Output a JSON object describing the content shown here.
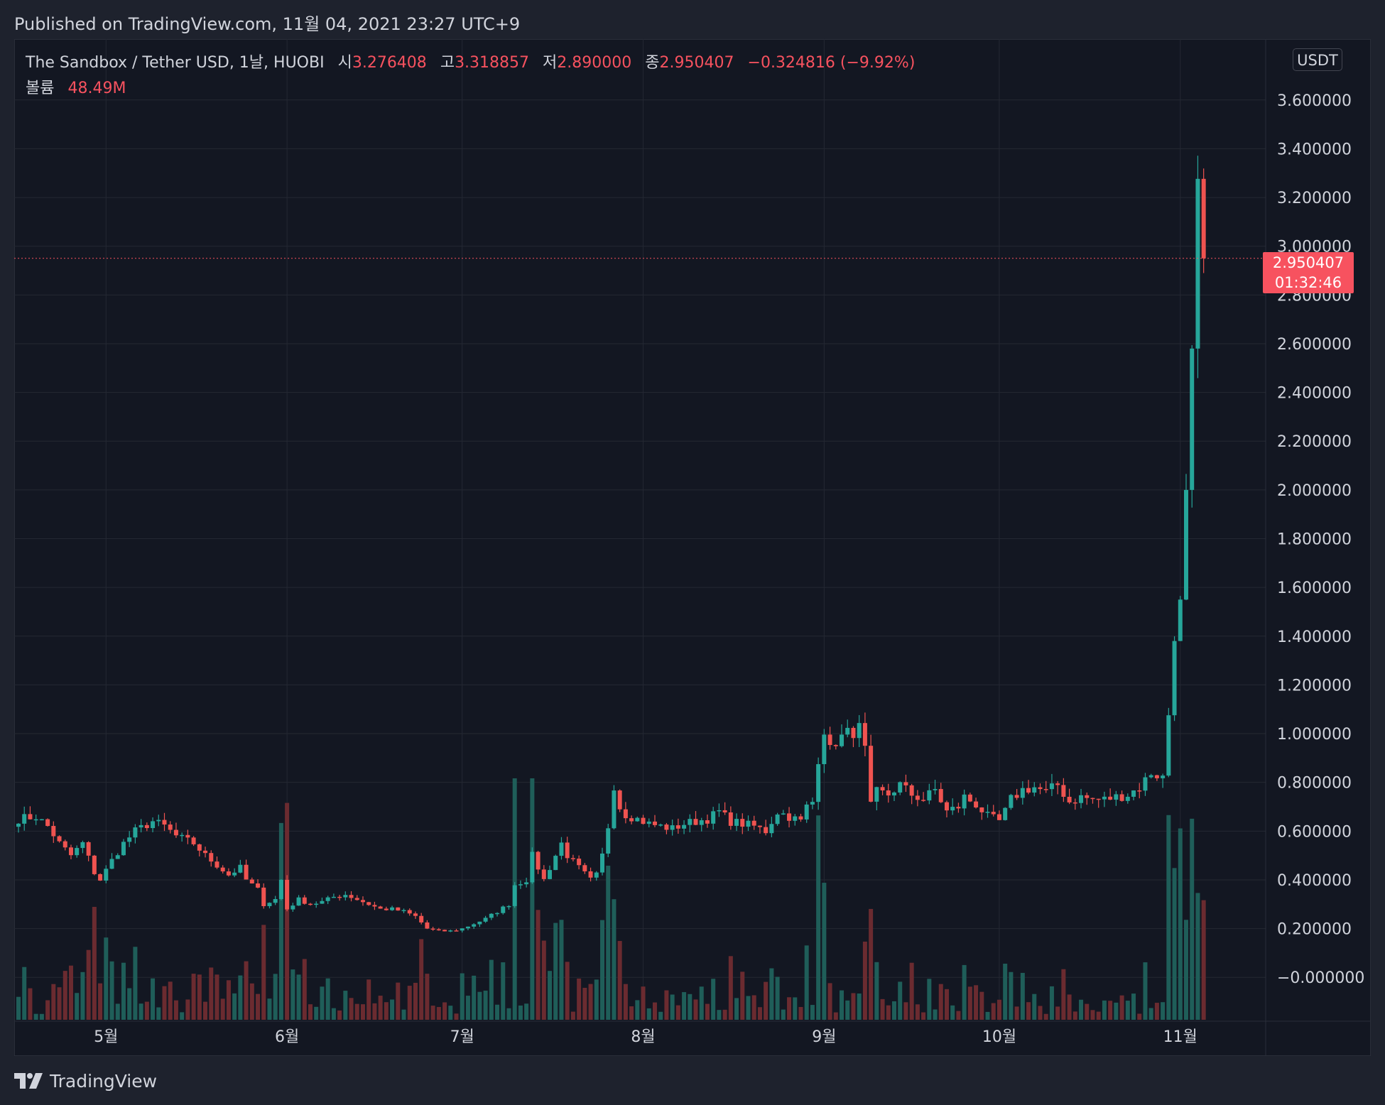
{
  "header": {
    "published": "Published on TradingView.com, 11월 04, 2021 23:27 UTC+9"
  },
  "legend": {
    "title": "The Sandbox / Tether USD, 1날, HUOBI",
    "open_label": "시",
    "open": "3.276408",
    "high_label": "고",
    "high": "3.318857",
    "low_label": "저",
    "low": "2.890000",
    "close_label": "종",
    "close": "2.950407",
    "change": "−0.324816 (−9.92%)",
    "volume_label": "볼륨",
    "volume": "48.49M"
  },
  "scale_currency": "USDT",
  "last_price": {
    "price": "2.950407",
    "countdown": "01:32:46"
  },
  "brand": {
    "name": "TradingView"
  },
  "colors": {
    "background": "#131722",
    "up": "#26a69a",
    "down": "#ef5350",
    "volume_up": "#1f5e59",
    "volume_down": "#6b2b30",
    "grid": "#242833"
  },
  "chart_data": {
    "type": "candlestick",
    "symbol": "SAND/USDT",
    "timeframe": "1D",
    "y_tick_labels": [
      "−0.000000",
      "0.200000",
      "0.400000",
      "0.600000",
      "0.800000",
      "1.000000",
      "1.200000",
      "1.400000",
      "1.600000",
      "1.800000",
      "2.000000",
      "2.200000",
      "2.400000",
      "2.600000",
      "2.800000",
      "3.000000",
      "3.200000",
      "3.400000",
      "3.600000"
    ],
    "y_tick_values": [
      0,
      0.2,
      0.4,
      0.6,
      0.8,
      1.0,
      1.2,
      1.4,
      1.6,
      1.8,
      2.0,
      2.2,
      2.4,
      2.6,
      2.8,
      3.0,
      3.2,
      3.4,
      3.6
    ],
    "ylim": [
      -0.18,
      3.85
    ],
    "x_tick_labels": [
      "5월",
      "6월",
      "7월",
      "8월",
      "9월",
      "10월",
      "11월"
    ],
    "x_tick_day_index": [
      15,
      46,
      76,
      107,
      138,
      168,
      199
    ],
    "days": 204,
    "anchors": [
      [
        0,
        0.65
      ],
      [
        3,
        0.66
      ],
      [
        5,
        0.62
      ],
      [
        7,
        0.55
      ],
      [
        9,
        0.5
      ],
      [
        11,
        0.55
      ],
      [
        13,
        0.43
      ],
      [
        14,
        0.4
      ],
      [
        16,
        0.48
      ],
      [
        18,
        0.55
      ],
      [
        20,
        0.6
      ],
      [
        23,
        0.64
      ],
      [
        25,
        0.62
      ],
      [
        27,
        0.58
      ],
      [
        30,
        0.55
      ],
      [
        32,
        0.5
      ],
      [
        34,
        0.46
      ],
      [
        36,
        0.42
      ],
      [
        38,
        0.45
      ],
      [
        39,
        0.4
      ],
      [
        41,
        0.36
      ],
      [
        42,
        0.3
      ],
      [
        44,
        0.32
      ],
      [
        45,
        0.4
      ],
      [
        46,
        0.28
      ],
      [
        48,
        0.32
      ],
      [
        50,
        0.3
      ],
      [
        52,
        0.31
      ],
      [
        54,
        0.33
      ],
      [
        56,
        0.34
      ],
      [
        58,
        0.32
      ],
      [
        60,
        0.3
      ],
      [
        62,
        0.28
      ],
      [
        64,
        0.28
      ],
      [
        66,
        0.27
      ],
      [
        68,
        0.25
      ],
      [
        70,
        0.2
      ],
      [
        72,
        0.19
      ],
      [
        74,
        0.19
      ],
      [
        76,
        0.2
      ],
      [
        78,
        0.22
      ],
      [
        80,
        0.24
      ],
      [
        82,
        0.27
      ],
      [
        84,
        0.3
      ],
      [
        85,
        0.38
      ],
      [
        87,
        0.4
      ],
      [
        88,
        0.5
      ],
      [
        89,
        0.45
      ],
      [
        90,
        0.4
      ],
      [
        91,
        0.45
      ],
      [
        93,
        0.55
      ],
      [
        94,
        0.5
      ],
      [
        96,
        0.45
      ],
      [
        98,
        0.4
      ],
      [
        99,
        0.42
      ],
      [
        100,
        0.5
      ],
      [
        101,
        0.62
      ],
      [
        102,
        0.79
      ],
      [
        103,
        0.7
      ],
      [
        104,
        0.67
      ],
      [
        106,
        0.65
      ],
      [
        108,
        0.63
      ],
      [
        110,
        0.62
      ],
      [
        112,
        0.61
      ],
      [
        114,
        0.63
      ],
      [
        116,
        0.64
      ],
      [
        118,
        0.65
      ],
      [
        120,
        0.68
      ],
      [
        122,
        0.64
      ],
      [
        124,
        0.63
      ],
      [
        126,
        0.62
      ],
      [
        128,
        0.6
      ],
      [
        130,
        0.68
      ],
      [
        132,
        0.66
      ],
      [
        134,
        0.64
      ],
      [
        135,
        0.7
      ],
      [
        136,
        0.72
      ],
      [
        137,
        0.9
      ],
      [
        138,
        1.02
      ],
      [
        139,
        0.93
      ],
      [
        140,
        0.97
      ],
      [
        142,
        1.0
      ],
      [
        144,
        1.02
      ],
      [
        145,
        0.93
      ],
      [
        146,
        0.7
      ],
      [
        147,
        0.76
      ],
      [
        149,
        0.75
      ],
      [
        151,
        0.79
      ],
      [
        153,
        0.75
      ],
      [
        155,
        0.73
      ],
      [
        157,
        0.77
      ],
      [
        159,
        0.68
      ],
      [
        161,
        0.7
      ],
      [
        162,
        0.74
      ],
      [
        164,
        0.71
      ],
      [
        166,
        0.66
      ],
      [
        168,
        0.64
      ],
      [
        169,
        0.68
      ],
      [
        170,
        0.73
      ],
      [
        172,
        0.77
      ],
      [
        174,
        0.78
      ],
      [
        176,
        0.76
      ],
      [
        178,
        0.79
      ],
      [
        180,
        0.72
      ],
      [
        182,
        0.74
      ],
      [
        184,
        0.73
      ],
      [
        186,
        0.73
      ],
      [
        188,
        0.74
      ],
      [
        190,
        0.75
      ],
      [
        192,
        0.78
      ],
      [
        194,
        0.84
      ],
      [
        196,
        0.82
      ],
      [
        197,
        1.08
      ],
      [
        198,
        1.38
      ],
      [
        199,
        1.55
      ],
      [
        200,
        2.0
      ],
      [
        201,
        2.58
      ],
      [
        202,
        3.28
      ],
      [
        203,
        2.95
      ]
    ],
    "last_candle": {
      "open": 3.276408,
      "high": 3.318857,
      "low": 2.89,
      "close": 2.950407
    }
  }
}
